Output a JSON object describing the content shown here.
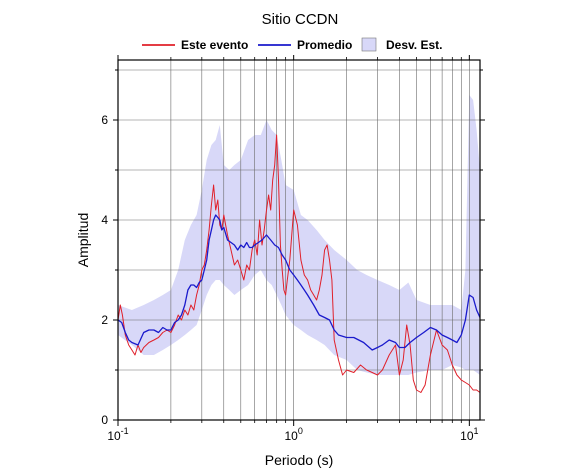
{
  "chart_data": {
    "type": "line",
    "title": "Sitio CCDN",
    "xlabel": "Periodo (s)",
    "ylabel": "Amplitud",
    "x_scale": "log",
    "xlim": [
      0.1,
      11.5
    ],
    "ylim": [
      0,
      7.2
    ],
    "grid": true,
    "legend_placement": "top",
    "x_ticks": [
      {
        "value": 0.1,
        "base": "10",
        "exp": "-1"
      },
      {
        "value": 1,
        "base": "10",
        "exp": "0"
      },
      {
        "value": 10,
        "base": "10",
        "exp": "1"
      }
    ],
    "y_ticks": [
      {
        "value": 0,
        "label": "0"
      },
      {
        "value": 2,
        "label": "2"
      },
      {
        "value": 4,
        "label": "4"
      },
      {
        "value": 6,
        "label": "6"
      }
    ],
    "legend": [
      {
        "label": "Este evento",
        "kind": "line",
        "color": "#e0202a"
      },
      {
        "label": "Promedio",
        "kind": "line",
        "color": "#1a1acc"
      },
      {
        "label": "Desv. Est.",
        "kind": "patch",
        "color": "#d8d8f8"
      }
    ],
    "series": [
      {
        "name": "Este evento",
        "color": "#e0202a",
        "x": [
          0.1,
          0.103,
          0.106,
          0.11,
          0.115,
          0.12,
          0.125,
          0.13,
          0.135,
          0.14,
          0.15,
          0.16,
          0.17,
          0.18,
          0.19,
          0.2,
          0.21,
          0.22,
          0.23,
          0.24,
          0.25,
          0.26,
          0.27,
          0.28,
          0.29,
          0.3,
          0.31,
          0.32,
          0.33,
          0.34,
          0.35,
          0.36,
          0.37,
          0.38,
          0.39,
          0.4,
          0.42,
          0.44,
          0.46,
          0.48,
          0.5,
          0.52,
          0.54,
          0.56,
          0.58,
          0.6,
          0.62,
          0.64,
          0.66,
          0.68,
          0.7,
          0.72,
          0.74,
          0.76,
          0.78,
          0.8,
          0.82,
          0.84,
          0.86,
          0.88,
          0.9,
          0.92,
          0.95,
          1.0,
          1.05,
          1.1,
          1.15,
          1.2,
          1.25,
          1.3,
          1.35,
          1.4,
          1.45,
          1.5,
          1.55,
          1.6,
          1.65,
          1.7,
          1.8,
          1.9,
          2.0,
          2.2,
          2.4,
          2.6,
          2.8,
          3.0,
          3.2,
          3.5,
          3.8,
          4.0,
          4.2,
          4.4,
          4.6,
          4.8,
          5.0,
          5.3,
          5.6,
          6.0,
          6.5,
          7.0,
          7.5,
          8.0,
          8.5,
          9.0,
          9.5,
          10.0,
          10.5,
          11.0,
          11.5
        ],
        "y": [
          2.0,
          2.3,
          2.1,
          1.7,
          1.5,
          1.4,
          1.3,
          1.5,
          1.35,
          1.45,
          1.55,
          1.6,
          1.65,
          1.75,
          1.8,
          1.75,
          1.9,
          2.1,
          2.0,
          2.2,
          2.1,
          2.3,
          2.2,
          2.5,
          2.7,
          3.0,
          3.1,
          3.4,
          3.8,
          4.3,
          4.7,
          4.2,
          4.4,
          3.9,
          3.8,
          4.1,
          3.7,
          3.4,
          3.1,
          3.2,
          3.0,
          2.8,
          3.1,
          3.0,
          3.4,
          3.6,
          3.3,
          4.0,
          3.5,
          3.8,
          4.2,
          4.5,
          4.2,
          4.8,
          5.1,
          5.7,
          4.8,
          3.5,
          3.0,
          2.6,
          2.5,
          2.8,
          3.2,
          4.2,
          3.9,
          3.2,
          2.9,
          2.8,
          2.6,
          2.5,
          2.4,
          2.6,
          2.9,
          3.4,
          3.5,
          3.2,
          2.8,
          1.6,
          1.2,
          0.9,
          1.0,
          0.95,
          1.1,
          1.0,
          0.95,
          0.9,
          1.0,
          1.3,
          1.5,
          0.9,
          1.2,
          1.9,
          1.5,
          0.8,
          0.6,
          0.55,
          0.7,
          1.3,
          1.8,
          1.5,
          1.4,
          1.1,
          0.9,
          0.8,
          0.75,
          0.7,
          0.6,
          0.6,
          0.55
        ]
      },
      {
        "name": "Promedio",
        "color": "#1a1acc",
        "x": [
          0.1,
          0.105,
          0.11,
          0.115,
          0.12,
          0.13,
          0.14,
          0.15,
          0.16,
          0.17,
          0.18,
          0.19,
          0.2,
          0.21,
          0.22,
          0.23,
          0.24,
          0.25,
          0.26,
          0.27,
          0.28,
          0.29,
          0.3,
          0.31,
          0.32,
          0.33,
          0.34,
          0.35,
          0.36,
          0.37,
          0.38,
          0.39,
          0.4,
          0.42,
          0.44,
          0.46,
          0.48,
          0.5,
          0.52,
          0.54,
          0.56,
          0.58,
          0.6,
          0.63,
          0.66,
          0.7,
          0.74,
          0.78,
          0.82,
          0.86,
          0.9,
          0.95,
          1.0,
          1.05,
          1.1,
          1.15,
          1.2,
          1.3,
          1.4,
          1.5,
          1.6,
          1.7,
          1.8,
          2.0,
          2.2,
          2.5,
          2.8,
          3.0,
          3.2,
          3.5,
          3.8,
          4.0,
          4.3,
          4.6,
          5.0,
          5.5,
          6.0,
          6.5,
          7.0,
          7.5,
          8.0,
          8.5,
          9.0,
          9.5,
          10.0,
          10.5,
          11.0,
          11.5
        ],
        "y": [
          2.0,
          1.95,
          1.75,
          1.6,
          1.55,
          1.5,
          1.75,
          1.8,
          1.8,
          1.75,
          1.85,
          1.8,
          1.8,
          1.95,
          2.0,
          2.1,
          2.3,
          2.6,
          2.7,
          2.7,
          2.65,
          2.75,
          2.8,
          3.0,
          3.2,
          3.6,
          3.8,
          4.0,
          4.1,
          4.05,
          4.0,
          3.8,
          3.85,
          3.6,
          3.55,
          3.5,
          3.4,
          3.5,
          3.45,
          3.55,
          3.45,
          3.45,
          3.5,
          3.55,
          3.6,
          3.7,
          3.6,
          3.5,
          3.45,
          3.3,
          3.2,
          3.0,
          2.9,
          2.8,
          2.7,
          2.6,
          2.5,
          2.3,
          2.1,
          2.05,
          2.0,
          1.8,
          1.7,
          1.65,
          1.65,
          1.55,
          1.4,
          1.45,
          1.5,
          1.6,
          1.55,
          1.45,
          1.45,
          1.55,
          1.65,
          1.75,
          1.85,
          1.8,
          1.7,
          1.65,
          1.6,
          1.55,
          1.7,
          2.0,
          2.5,
          2.45,
          2.2,
          2.05
        ]
      }
    ],
    "std_band": {
      "name": "Desv. Est.",
      "color": "#d8d8f8",
      "x": [
        0.1,
        0.12,
        0.14,
        0.16,
        0.18,
        0.2,
        0.22,
        0.24,
        0.26,
        0.28,
        0.3,
        0.32,
        0.34,
        0.36,
        0.38,
        0.4,
        0.43,
        0.46,
        0.5,
        0.55,
        0.6,
        0.65,
        0.7,
        0.75,
        0.8,
        0.85,
        0.9,
        1.0,
        1.1,
        1.2,
        1.35,
        1.5,
        1.7,
        2.0,
        2.3,
        2.6,
        3.0,
        3.5,
        4.0,
        4.5,
        5.0,
        6.0,
        7.0,
        8.0,
        9.0,
        9.5,
        10.0,
        10.5,
        11.0,
        11.5
      ],
      "upper": [
        2.3,
        2.2,
        2.3,
        2.4,
        2.5,
        2.6,
        3.0,
        3.6,
        3.9,
        4.1,
        4.6,
        5.2,
        5.5,
        5.6,
        5.9,
        5.1,
        5.0,
        5.1,
        5.2,
        5.6,
        5.7,
        5.7,
        6.0,
        5.8,
        5.7,
        5.2,
        4.7,
        4.6,
        4.1,
        4.0,
        3.8,
        3.6,
        3.4,
        3.2,
        3.0,
        2.9,
        2.8,
        2.7,
        2.6,
        2.75,
        2.4,
        2.3,
        2.3,
        2.3,
        2.2,
        3.0,
        6.5,
        6.4,
        5.8,
        5.0
      ],
      "lower": [
        1.7,
        1.5,
        1.3,
        1.3,
        1.4,
        1.5,
        1.6,
        1.7,
        1.8,
        1.9,
        2.2,
        2.5,
        2.7,
        2.8,
        2.8,
        2.7,
        2.6,
        2.5,
        2.6,
        2.7,
        2.9,
        3.0,
        2.8,
        2.7,
        2.5,
        2.3,
        2.1,
        1.9,
        1.8,
        1.7,
        1.6,
        1.5,
        1.3,
        1.2,
        1.0,
        0.95,
        0.9,
        0.9,
        0.9,
        0.9,
        0.95,
        1.0,
        1.0,
        1.1,
        1.05,
        1.0,
        1.0,
        1.0,
        0.95,
        0.9
      ]
    }
  }
}
